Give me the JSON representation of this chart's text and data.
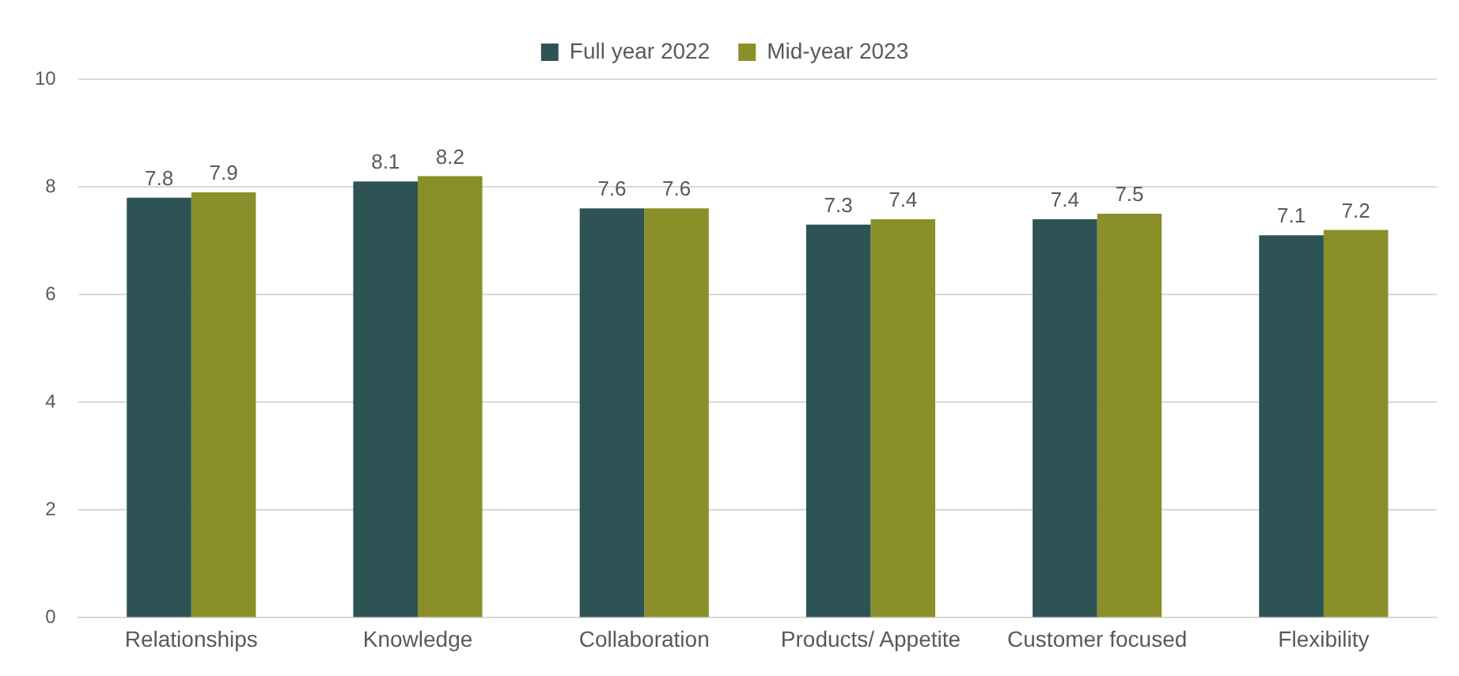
{
  "chart_data": {
    "type": "bar",
    "categories": [
      "Relationships",
      "Knowledge",
      "Collaboration",
      "Products/ Appetite",
      "Customer focused",
      "Flexibility"
    ],
    "series": [
      {
        "name": "Full year 2022",
        "color": "#2d5355",
        "values": [
          7.8,
          8.1,
          7.6,
          7.3,
          7.4,
          7.1
        ]
      },
      {
        "name": "Mid-year 2023",
        "color": "#8a8f29",
        "values": [
          7.9,
          8.2,
          7.6,
          7.4,
          7.5,
          7.2
        ]
      }
    ],
    "ylim": [
      0,
      10
    ],
    "yticks": [
      0,
      2,
      4,
      6,
      8,
      10
    ],
    "grid": "y",
    "legend": "top",
    "data_labels": true
  }
}
